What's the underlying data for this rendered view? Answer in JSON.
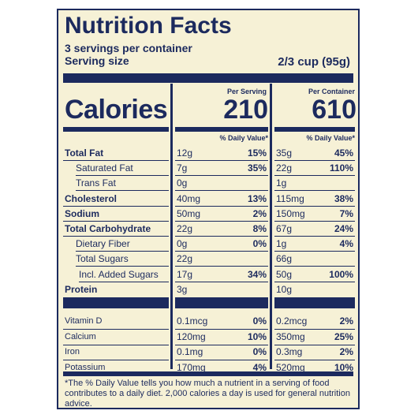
{
  "header": {
    "title": "Nutrition Facts",
    "servings": "3 servings per container",
    "serving_size_label": "Serving size",
    "serving_size_value": "2/3 cup (95g)"
  },
  "calories": {
    "label": "Calories",
    "per_serving_label": "Per Serving",
    "per_serving_value": "210",
    "per_container_label": "Per Container",
    "per_container_value": "610"
  },
  "dv_header": "% Daily Value*",
  "nutrients": [
    {
      "name": "Total Fat",
      "bold": true,
      "indent": false,
      "serv_amt": "12g",
      "serv_dv": "15%",
      "cont_amt": "35g",
      "cont_dv": "45%"
    },
    {
      "name": "Saturated Fat",
      "bold": false,
      "indent": true,
      "serv_amt": "7g",
      "serv_dv": "35%",
      "cont_amt": "22g",
      "cont_dv": "110%"
    },
    {
      "name": "Trans Fat",
      "bold": false,
      "indent": true,
      "serv_amt": "0g",
      "serv_dv": "",
      "cont_amt": "1g",
      "cont_dv": ""
    },
    {
      "name": "Cholesterol",
      "bold": true,
      "indent": false,
      "serv_amt": "40mg",
      "serv_dv": "13%",
      "cont_amt": "115mg",
      "cont_dv": "38%"
    },
    {
      "name": "Sodium",
      "bold": true,
      "indent": false,
      "serv_amt": "50mg",
      "serv_dv": "2%",
      "cont_amt": "150mg",
      "cont_dv": "7%"
    },
    {
      "name": "Total Carbohydrate",
      "bold": true,
      "indent": false,
      "serv_amt": "22g",
      "serv_dv": "8%",
      "cont_amt": "67g",
      "cont_dv": "24%"
    },
    {
      "name": "Dietary Fiber",
      "bold": false,
      "indent": true,
      "serv_amt": "0g",
      "serv_dv": "0%",
      "cont_amt": "1g",
      "cont_dv": "4%"
    },
    {
      "name": "Total Sugars",
      "bold": false,
      "indent": true,
      "serv_amt": "22g",
      "serv_dv": "",
      "cont_amt": "66g",
      "cont_dv": ""
    },
    {
      "name": "Incl. Added Sugars",
      "bold": false,
      "indent": true,
      "indent2": true,
      "serv_amt": "17g",
      "serv_dv": "34%",
      "cont_amt": "50g",
      "cont_dv": "100%"
    },
    {
      "name": "Protein",
      "bold": true,
      "indent": false,
      "serv_amt": "3g",
      "serv_dv": "",
      "cont_amt": "10g",
      "cont_dv": ""
    }
  ],
  "vitamins": [
    {
      "name": "Vitamin D",
      "serv_amt": "0.1mcg",
      "serv_dv": "0%",
      "cont_amt": "0.2mcg",
      "cont_dv": "2%"
    },
    {
      "name": "Calcium",
      "serv_amt": "120mg",
      "serv_dv": "10%",
      "cont_amt": "350mg",
      "cont_dv": "25%"
    },
    {
      "name": "Iron",
      "serv_amt": "0.1mg",
      "serv_dv": "0%",
      "cont_amt": "0.3mg",
      "cont_dv": "2%"
    },
    {
      "name": "Potassium",
      "serv_amt": "170mg",
      "serv_dv": "4%",
      "cont_amt": "520mg",
      "cont_dv": "10%"
    }
  ],
  "footnote": "*The % Daily Value tells you how much a nutrient in a serving of food contributes to a daily diet. 2,000 calories a day is used for general nutrition advice.",
  "colors": {
    "ink": "#1c2a5e",
    "paper": "#f6f1d6"
  }
}
